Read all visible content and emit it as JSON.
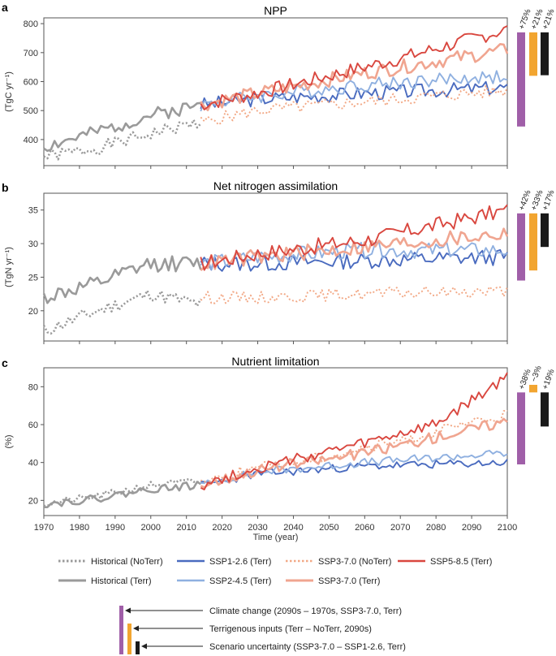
{
  "chart_data": [
    {
      "panel": "a",
      "type": "line",
      "title": "NPP",
      "ylabel": "(TgC yr⁻¹)",
      "ylim": [
        310,
        820
      ],
      "yticks": [
        400,
        500,
        600,
        700,
        800
      ],
      "series": [
        {
          "name": "Historical (NoTerr)",
          "x_start": 1970,
          "x_end": 2014,
          "anchors": [
            [
              1970,
              340
            ],
            [
              1985,
              370
            ],
            [
              2000,
              420
            ],
            [
              2014,
              460
            ]
          ],
          "amp": 22,
          "seed": 1
        },
        {
          "name": "Historical (Terr)",
          "x_start": 1970,
          "x_end": 2014,
          "anchors": [
            [
              1970,
              375
            ],
            [
              1985,
              425
            ],
            [
              2000,
              485
            ],
            [
              2014,
              520
            ]
          ],
          "amp": 24,
          "seed": 2
        },
        {
          "name": "SSP1-2.6 (Terr)",
          "x_start": 2014,
          "x_end": 2100,
          "anchors": [
            [
              2014,
              520
            ],
            [
              2030,
              540
            ],
            [
              2060,
              560
            ],
            [
              2100,
              580
            ]
          ],
          "amp": 25,
          "seed": 3
        },
        {
          "name": "SSP2-4.5 (Terr)",
          "x_start": 2014,
          "x_end": 2100,
          "anchors": [
            [
              2014,
              520
            ],
            [
              2030,
              550
            ],
            [
              2060,
              590
            ],
            [
              2100,
              620
            ]
          ],
          "amp": 25,
          "seed": 4
        },
        {
          "name": "SSP3-7.0 (NoTerr)",
          "x_start": 2014,
          "x_end": 2100,
          "anchors": [
            [
              2014,
              460
            ],
            [
              2030,
              500
            ],
            [
              2060,
              530
            ],
            [
              2100,
              570
            ]
          ],
          "amp": 22,
          "seed": 5
        },
        {
          "name": "SSP3-7.0 (Terr)",
          "x_start": 2014,
          "x_end": 2100,
          "anchors": [
            [
              2014,
              520
            ],
            [
              2030,
              560
            ],
            [
              2060,
              630
            ],
            [
              2100,
              710
            ]
          ],
          "amp": 25,
          "seed": 6
        },
        {
          "name": "SSP5-8.5 (Terr)",
          "x_start": 2014,
          "x_end": 2100,
          "anchors": [
            [
              2014,
              520
            ],
            [
              2030,
              560
            ],
            [
              2050,
              620
            ],
            [
              2070,
              680
            ],
            [
              2100,
              780
            ]
          ],
          "amp": 25,
          "seed": 7
        }
      ],
      "bars": [
        {
          "label": "+75%",
          "from": 445,
          "to": 770,
          "kind": "climate"
        },
        {
          "label": "+21%",
          "from": 620,
          "to": 770,
          "kind": "terrigenous"
        },
        {
          "label": "+21%",
          "from": 622,
          "to": 770,
          "kind": "scenario"
        }
      ]
    },
    {
      "panel": "b",
      "type": "line",
      "title": "Net nitrogen assimilation",
      "ylabel": "(TgN yr⁻¹)",
      "ylim": [
        15.5,
        37.5
      ],
      "yticks": [
        20,
        25,
        30,
        35
      ],
      "series": [
        {
          "name": "Historical (NoTerr)",
          "x_start": 1970,
          "x_end": 2014,
          "anchors": [
            [
              1970,
              17
            ],
            [
              1985,
              20
            ],
            [
              2000,
              22.5
            ],
            [
              2014,
              21
            ]
          ],
          "amp": 1.0,
          "seed": 11
        },
        {
          "name": "Historical (Terr)",
          "x_start": 1970,
          "x_end": 2014,
          "anchors": [
            [
              1970,
              22
            ],
            [
              1985,
              24
            ],
            [
              2000,
              27
            ],
            [
              2014,
              27
            ]
          ],
          "amp": 1.2,
          "seed": 12
        },
        {
          "name": "SSP1-2.6 (Terr)",
          "x_start": 2014,
          "x_end": 2100,
          "anchors": [
            [
              2014,
              27
            ],
            [
              2030,
              27
            ],
            [
              2060,
              27.5
            ],
            [
              2100,
              28
            ]
          ],
          "amp": 1.2,
          "seed": 13
        },
        {
          "name": "SSP2-4.5 (Terr)",
          "x_start": 2014,
          "x_end": 2100,
          "anchors": [
            [
              2014,
              27
            ],
            [
              2030,
              28
            ],
            [
              2060,
              29
            ],
            [
              2100,
              29
            ]
          ],
          "amp": 1.2,
          "seed": 14
        },
        {
          "name": "SSP3-7.0 (NoTerr)",
          "x_start": 2014,
          "x_end": 2100,
          "anchors": [
            [
              2014,
              22
            ],
            [
              2030,
              22
            ],
            [
              2060,
              22.5
            ],
            [
              2100,
              23
            ]
          ],
          "amp": 0.9,
          "seed": 15
        },
        {
          "name": "SSP3-7.0 (Terr)",
          "x_start": 2014,
          "x_end": 2100,
          "anchors": [
            [
              2014,
              27
            ],
            [
              2030,
              28
            ],
            [
              2060,
              29.5
            ],
            [
              2100,
              31.5
            ]
          ],
          "amp": 1.2,
          "seed": 16
        },
        {
          "name": "SSP5-8.5 (Terr)",
          "x_start": 2014,
          "x_end": 2100,
          "anchors": [
            [
              2014,
              27
            ],
            [
              2030,
              28.5
            ],
            [
              2060,
              30.5
            ],
            [
              2100,
              35
            ]
          ],
          "amp": 1.2,
          "seed": 17
        }
      ],
      "bars": [
        {
          "label": "+42%",
          "from": 24.5,
          "to": 34.5,
          "kind": "climate"
        },
        {
          "label": "+33%",
          "from": 26,
          "to": 34.5,
          "kind": "terrigenous"
        },
        {
          "label": "+17%",
          "from": 29.5,
          "to": 34.5,
          "kind": "scenario"
        }
      ]
    },
    {
      "panel": "c",
      "type": "line",
      "title": "Nutrient limitation",
      "ylabel": "(%)",
      "ylim": [
        12,
        90
      ],
      "yticks": [
        20,
        40,
        60,
        80
      ],
      "series": [
        {
          "name": "Historical (NoTerr)",
          "x_start": 1970,
          "x_end": 2014,
          "anchors": [
            [
              1970,
              18
            ],
            [
              1985,
              22
            ],
            [
              2000,
              28
            ],
            [
              2014,
              30
            ]
          ],
          "amp": 2.0,
          "seed": 21
        },
        {
          "name": "Historical (Terr)",
          "x_start": 1970,
          "x_end": 2014,
          "anchors": [
            [
              1970,
              18
            ],
            [
              1985,
              21
            ],
            [
              2000,
              26
            ],
            [
              2014,
              28
            ]
          ],
          "amp": 2.0,
          "seed": 22
        },
        {
          "name": "SSP1-2.6 (Terr)",
          "x_start": 2014,
          "x_end": 2100,
          "anchors": [
            [
              2014,
              28
            ],
            [
              2030,
              34
            ],
            [
              2060,
              38
            ],
            [
              2100,
              40
            ]
          ],
          "amp": 2.2,
          "seed": 23
        },
        {
          "name": "SSP2-4.5 (Terr)",
          "x_start": 2014,
          "x_end": 2100,
          "anchors": [
            [
              2014,
              28
            ],
            [
              2030,
              35
            ],
            [
              2060,
              40
            ],
            [
              2100,
              45
            ]
          ],
          "amp": 2.2,
          "seed": 24
        },
        {
          "name": "SSP3-7.0 (NoTerr)",
          "x_start": 2014,
          "x_end": 2100,
          "anchors": [
            [
              2014,
              30
            ],
            [
              2030,
              37
            ],
            [
              2060,
              47
            ],
            [
              2100,
              65
            ]
          ],
          "amp": 3.0,
          "seed": 25
        },
        {
          "name": "SSP3-7.0 (Terr)",
          "x_start": 2014,
          "x_end": 2100,
          "anchors": [
            [
              2014,
              28
            ],
            [
              2030,
              36
            ],
            [
              2060,
              45
            ],
            [
              2100,
              62
            ]
          ],
          "amp": 3.0,
          "seed": 26
        },
        {
          "name": "SSP5-8.5 (Terr)",
          "x_start": 2014,
          "x_end": 2100,
          "anchors": [
            [
              2014,
              28
            ],
            [
              2030,
              37
            ],
            [
              2060,
              50
            ],
            [
              2080,
              60
            ],
            [
              2100,
              85
            ]
          ],
          "amp": 3.0,
          "seed": 27
        }
      ],
      "bars": [
        {
          "label": "+38%",
          "from": 39,
          "to": 77,
          "kind": "climate"
        },
        {
          "label": "−3%",
          "from": 77,
          "to": 81,
          "kind": "terrigenous"
        },
        {
          "label": "+19%",
          "from": 59,
          "to": 77,
          "kind": "scenario"
        }
      ]
    }
  ],
  "xaxis": {
    "label": "Time (year)",
    "range": [
      1970,
      2100
    ],
    "ticks": [
      "1970",
      "1980",
      "1990",
      "2000",
      "2010",
      "2020",
      "2030",
      "2040",
      "2050",
      "2060",
      "2070",
      "2080",
      "2090",
      "2100"
    ]
  },
  "legend": [
    {
      "label": "Historical (NoTerr)",
      "color": "#9a9a9a",
      "dash": true,
      "thick": true
    },
    {
      "label": "Historical (Terr)",
      "color": "#9a9a9a",
      "dash": false,
      "thick": true
    },
    {
      "label": "SSP1-2.6 (Terr)",
      "color": "#4a6bbf",
      "dash": false
    },
    {
      "label": "SSP2-4.5 (Terr)",
      "color": "#8fb0e0",
      "dash": false
    },
    {
      "label": "SSP3-7.0 (NoTerr)",
      "color": "#f2a885",
      "dash": true
    },
    {
      "label": "SSP3-7.0 (Terr)",
      "color": "#f0a590",
      "dash": false,
      "thick": true
    },
    {
      "label": "SSP5-8.5 (Terr)",
      "color": "#d9473f",
      "dash": false
    }
  ],
  "series_colors": {
    "Historical (NoTerr)": "#9a9a9a",
    "Historical (Terr)": "#9a9a9a",
    "SSP1-2.6 (Terr)": "#4a6bbf",
    "SSP2-4.5 (Terr)": "#8fb0e0",
    "SSP3-7.0 (NoTerr)": "#f2a885",
    "SSP3-7.0 (Terr)": "#f0a590",
    "SSP5-8.5 (Terr)": "#d9473f"
  },
  "bar_colors": {
    "climate": "#a05fa8",
    "terrigenous": "#f2a530",
    "scenario": "#1a1a1a"
  },
  "key": [
    {
      "kind": "climate",
      "label": "Climate change (2090s – 1970s, SSP3-7.0, Terr)"
    },
    {
      "kind": "terrigenous",
      "label": "Terrigenous inputs (Terr – NoTerr, 2090s)"
    },
    {
      "kind": "scenario",
      "label": "Scenario uncertainty (SSP3-7.0 – SSP1-2.6, Terr)"
    }
  ]
}
